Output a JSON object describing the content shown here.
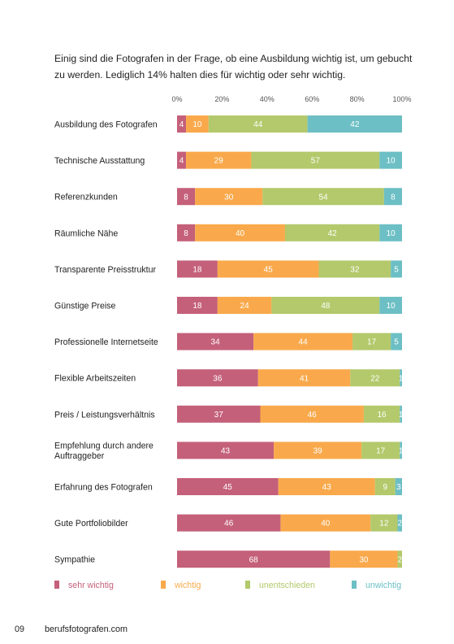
{
  "intro_text": "Einig sind die Fotografen in der Frage, ob eine Ausbildung wichtig ist, um gebucht zu werden. Lediglich 14% halten dies für wichtig oder sehr wichtig.",
  "chart_data": {
    "type": "bar",
    "orientation": "horizontal",
    "stacked": true,
    "categories": [
      "Ausbildung des Fotografen",
      "Technische Ausstattung",
      "Referenzkunden",
      "Räumliche Nähe",
      "Transparente Preisstruktur",
      "Günstige Preise",
      "Professionelle Internetseite",
      "Flexible Arbeitszeiten",
      "Preis / Leistungsverhältnis",
      "Empfehlung durch andere Auftraggeber",
      "Erfahrung des Fotografen",
      "Gute Portfoliobilder",
      "Sympathie"
    ],
    "series": [
      {
        "name": "sehr wichtig",
        "color": "#c4607a",
        "values": [
          4,
          4,
          8,
          8,
          18,
          18,
          34,
          36,
          37,
          43,
          45,
          46,
          68
        ]
      },
      {
        "name": "wichtig",
        "color": "#f9a94b",
        "values": [
          10,
          29,
          30,
          40,
          45,
          24,
          44,
          41,
          46,
          39,
          43,
          40,
          30
        ]
      },
      {
        "name": "unentschieden",
        "color": "#b3c96b",
        "values": [
          44,
          57,
          54,
          42,
          32,
          48,
          17,
          22,
          16,
          17,
          9,
          12,
          2
        ]
      },
      {
        "name": "unwichtig",
        "color": "#6cbfc4",
        "values": [
          42,
          10,
          8,
          10,
          5,
          10,
          5,
          1,
          1,
          1,
          3,
          2,
          0
        ]
      }
    ],
    "xticks": [
      "0%",
      "20%",
      "40%",
      "60%",
      "80%",
      "100%"
    ],
    "xlim": [
      0,
      100
    ],
    "grid": false,
    "legend_position": "bottom"
  },
  "footer": {
    "page_number": "09",
    "site": "berufsfotografen.com"
  }
}
